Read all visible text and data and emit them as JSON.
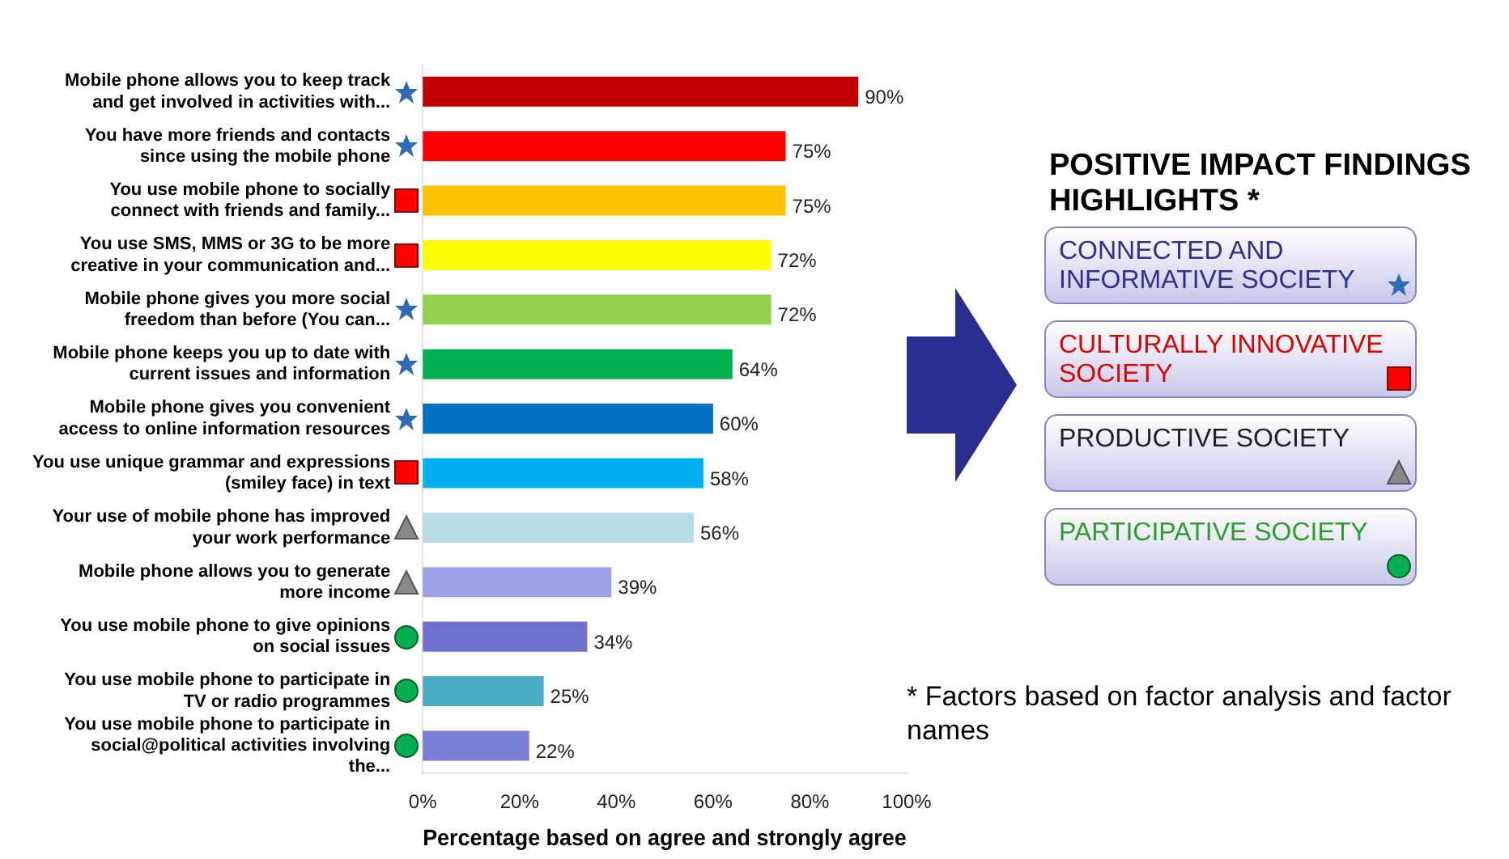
{
  "chart_data": {
    "type": "bar",
    "orientation": "horizontal",
    "title": "POSITIVE IMPACT FINDINGS HIGHLIGHTS *",
    "xlabel": "Percentage based on agree and strongly agree",
    "categories": [
      "Mobile phone allows you to keep track and get involved in activities with...",
      "You have more friends and contacts since using the mobile phone",
      "You use mobile phone to socially connect with friends and family...",
      "You use SMS, MMS or 3G to be more creative in your communication and...",
      "Mobile phone gives you more social freedom than before (You can...",
      "Mobile phone keeps you up to date with current issues and information",
      "Mobile phone gives you convenient access to online information resources",
      "You use unique grammar and expressions (smiley face) in text",
      "Your use of mobile phone has improved your work performance",
      "Mobile phone allows you to generate more income",
      "You use mobile phone to give opinions on social issues",
      "You use mobile phone to participate in TV or radio programmes",
      "You use mobile phone to participate in social@political activities involving the..."
    ],
    "values": [
      90,
      75,
      75,
      72,
      72,
      64,
      60,
      58,
      56,
      39,
      34,
      25,
      22
    ],
    "colors": [
      "#c00000",
      "#ff0000",
      "#ffc000",
      "#ffff00",
      "#92d050",
      "#00b050",
      "#0070c0",
      "#00b0f0",
      "#b7dde8",
      "#a0a0e8",
      "#7070d0",
      "#4bacc6",
      "#7b7bd8"
    ],
    "value_labels": [
      "90%",
      "75%",
      "75%",
      "72%",
      "72%",
      "64%",
      "60%",
      "58%",
      "56%",
      "39%",
      "34%",
      "25%",
      "22%"
    ],
    "xlim": [
      0,
      100
    ],
    "xticks": [
      {
        "value": 0,
        "label": "0%"
      },
      {
        "value": 20,
        "label": "20%"
      },
      {
        "value": 40,
        "label": "40%"
      },
      {
        "value": 60,
        "label": "60%"
      },
      {
        "value": 80,
        "label": "80%"
      },
      {
        "value": 100,
        "label": "100%"
      }
    ],
    "grid": false,
    "legend": false,
    "annotations": [
      "CONNECTED AND INFORMATIVE SOCIETY",
      "CULTURALLY INNOVATIVE SOCIETY",
      "PRODUCTIVE SOCIETY",
      "PARTICIPATIVE SOCIETY",
      "* Factors based on factor analysis and factor names"
    ]
  }
}
